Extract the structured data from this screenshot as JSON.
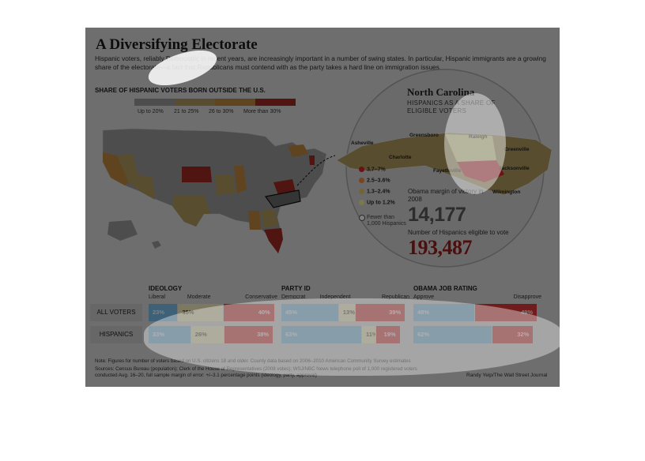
{
  "figure": {
    "title": "A Diversifying Electorate",
    "subtitle": "Hispanic voters, reliably Democratic in recent years, are increasingly important in a number of swing states. In particular, Hispanic immigrants are a growing share of the electorate—a fact that Republicans must contend with as the party takes a hard line on immigration issues."
  },
  "us_map": {
    "heading": "SHARE OF HISPANIC VOTERS BORN OUTSIDE THE U.S.",
    "legend": [
      {
        "label": "Up to 20%",
        "color": "#9a9a9a"
      },
      {
        "label": "21 to 25%",
        "color": "#b09a5e"
      },
      {
        "label": "26 to 30%",
        "color": "#c0883f"
      },
      {
        "label": "More than 30%",
        "color": "#a02a22"
      }
    ]
  },
  "nc_inset": {
    "title": "North Carolina",
    "subtitle": "HISPANICS AS A SHARE OF ELIGIBLE VOTERS",
    "cities": [
      "Asheville",
      "Greensboro",
      "Raleigh",
      "Charlotte",
      "Fayetteville",
      "Greenville",
      "Jacksonville",
      "Wilmington"
    ],
    "legend": [
      {
        "label": "3.7–7%",
        "color": "#d8232a"
      },
      {
        "label": "2.5–3.6%",
        "color": "#ef8a3c"
      },
      {
        "label": "1.3–2.4%",
        "color": "#e9c86a"
      },
      {
        "label": "Up to 1.2%",
        "color": "#f4f09a"
      }
    ],
    "fewer_label": "Fewer than 1,000 Hispanics",
    "obama_margin_label": "Obama margin of victory in 2008",
    "obama_margin_value": "14,177",
    "eligible_label": "Number of Hispanics eligible to vote",
    "eligible_value": "193,487"
  },
  "chart_data": [
    {
      "type": "bar",
      "title": "IDEOLOGY",
      "categories": [
        "ALL VOTERS",
        "HISPANICS"
      ],
      "series": [
        {
          "name": "Liberal",
          "values": [
            23,
            33
          ],
          "labels": [
            "23%",
            "33%"
          ],
          "color": "#7ec3ee"
        },
        {
          "name": "Moderate",
          "values": [
            35,
            26
          ],
          "labels": [
            "35%",
            "26%"
          ],
          "color": "#fbf2c2"
        },
        {
          "name": "Conservative",
          "values": [
            40,
            38
          ],
          "labels": [
            "40%",
            "38%"
          ],
          "color": "#e03838"
        }
      ],
      "stacked": true
    },
    {
      "type": "bar",
      "title": "PARTY ID",
      "categories": [
        "ALL VOTERS",
        "HISPANICS"
      ],
      "series": [
        {
          "name": "Democrat",
          "values": [
            45,
            63
          ],
          "labels": [
            "45%",
            "63%"
          ],
          "color": "#7ec3ee"
        },
        {
          "name": "Independent",
          "values": [
            13,
            11
          ],
          "labels": [
            "13%",
            "11%"
          ],
          "color": "#fbf2c2"
        },
        {
          "name": "Republican",
          "values": [
            39,
            19
          ],
          "labels": [
            "39%",
            "19%"
          ],
          "color": "#e03838"
        }
      ],
      "stacked": true
    },
    {
      "type": "bar",
      "title": "OBAMA JOB RATING",
      "categories": [
        "ALL VOTERS",
        "HISPANICS"
      ],
      "series": [
        {
          "name": "Approve",
          "values": [
            48,
            62
          ],
          "labels": [
            "48%",
            "62%"
          ],
          "color": "#7ec3ee"
        },
        {
          "name": "Disapprove",
          "values": [
            49,
            32
          ],
          "labels": [
            "49%",
            "32%"
          ],
          "color": "#e03838"
        }
      ],
      "stacked": true
    }
  ],
  "notes": {
    "line1": "Note: Figures for number of voters based on U.S. citizens 18 and older. County data based on 2006–2010 American Community Survey estimates",
    "line2": "Sources: Census Bureau (population); Clerk of the House of Representatives (2008 votes); WSJ/NBC News telephone poll of 1,000 registered voters",
    "line3": "conducted Aug. 16–20, full sample margin of error: +/–3.1 percentage points (ideology, party, approval)",
    "credit": "Randy Yeip/The Wall Street Journal"
  }
}
